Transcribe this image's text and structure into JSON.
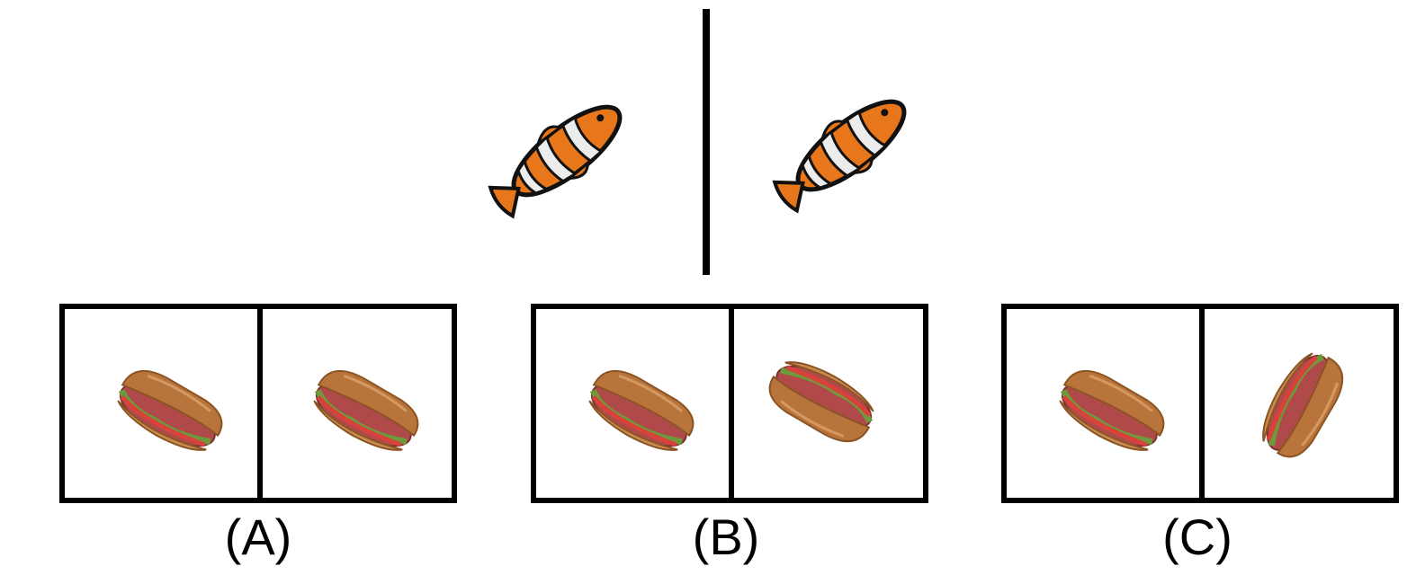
{
  "reference": {
    "left_image": "clownfish-icon",
    "right_image": "clownfish-icon"
  },
  "options": [
    {
      "label": "(A)",
      "left_image": "sandwich-icon",
      "right_image": "sandwich-icon"
    },
    {
      "label": "(B)",
      "left_image": "sandwich-icon",
      "right_image": "sandwich-icon"
    },
    {
      "label": "(C)",
      "left_image": "sandwich-icon",
      "right_image": "sandwich-icon"
    }
  ],
  "colors": {
    "fish_orange": "#e8761a",
    "fish_stripe": "#ececec",
    "fish_outline": "#111111",
    "bread": "#b8743a",
    "bread_light": "#d9a26a",
    "lettuce": "#6d9a3a",
    "meat": "#b04a4a",
    "tomato": "#d9423a"
  }
}
